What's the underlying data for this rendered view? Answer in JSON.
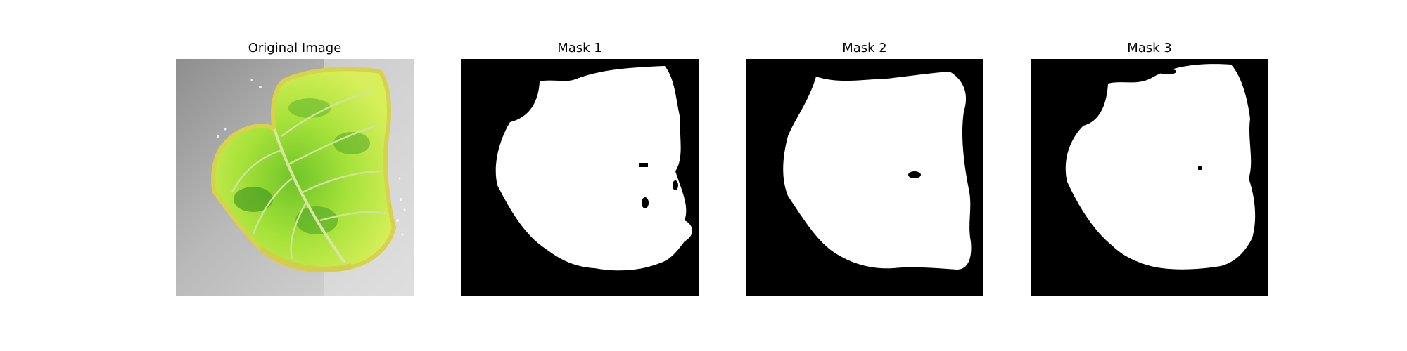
{
  "figure": {
    "panels": [
      {
        "title": "Original Image"
      },
      {
        "title": "Mask 1"
      },
      {
        "title": "Mask 2"
      },
      {
        "title": "Mask 3"
      }
    ]
  },
  "colors": {
    "mask_background": "#000000",
    "mask_foreground": "#ffffff",
    "leaf_light": "#c8f24a",
    "leaf_mid": "#8fd62e",
    "leaf_dark": "#2f8a1c",
    "leaf_edge": "#d8d24a",
    "photo_background": "#a9a9a9"
  }
}
